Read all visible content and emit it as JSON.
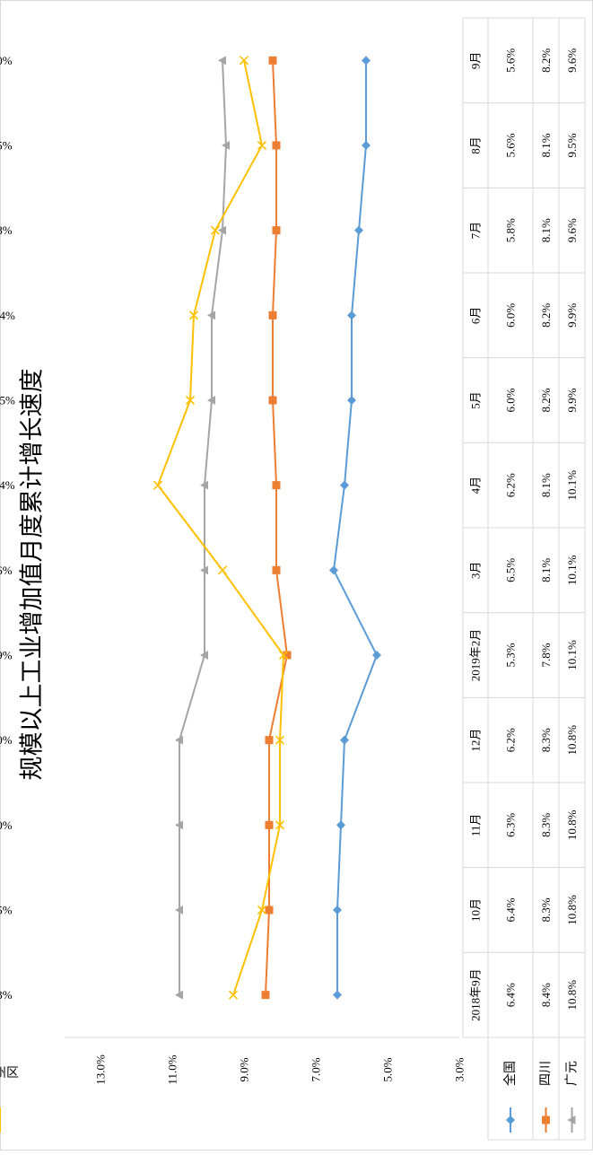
{
  "chart_data": {
    "type": "line",
    "title": "规模以上工业增加值月度累计增长速度",
    "categories": [
      "2018年9月",
      "10月",
      "11月",
      "12月",
      "2019年2月",
      "3月",
      "4月",
      "5月",
      "6月",
      "7月",
      "8月",
      "9月"
    ],
    "y_ticks": [
      "3.0%",
      "5.0%",
      "7.0%",
      "9.0%",
      "11.0%",
      "13.0%"
    ],
    "ylim": [
      3.0,
      13.0
    ],
    "unit": "%",
    "grid": false,
    "legend_placement": "bottom-table",
    "orientation": "rotated-90",
    "series": [
      {
        "name": "全国",
        "color": "#5b9bd5",
        "marker": "diamond",
        "values": [
          6.4,
          6.4,
          6.3,
          6.2,
          5.3,
          6.5,
          6.2,
          6.0,
          6.0,
          5.8,
          5.6,
          5.6
        ],
        "labels": [
          "6.4%",
          "6.4%",
          "6.3%",
          "6.2%",
          "5.3%",
          "6.5%",
          "6.2%",
          "6.0%",
          "6.0%",
          "5.8%",
          "5.6%",
          "5.6%"
        ]
      },
      {
        "name": "四川",
        "color": "#ed7d31",
        "marker": "square",
        "values": [
          8.4,
          8.3,
          8.3,
          8.3,
          7.8,
          8.1,
          8.1,
          8.2,
          8.2,
          8.1,
          8.1,
          8.2
        ],
        "labels": [
          "8.4%",
          "8.3%",
          "8.3%",
          "8.3%",
          "7.8%",
          "8.1%",
          "8.1%",
          "8.2%",
          "8.2%",
          "8.1%",
          "8.1%",
          "8.2%"
        ]
      },
      {
        "name": "广元",
        "color": "#a5a5a5",
        "marker": "triangle",
        "values": [
          10.8,
          10.8,
          10.8,
          10.8,
          10.1,
          10.1,
          10.1,
          9.9,
          9.9,
          9.6,
          9.5,
          9.6
        ],
        "labels": [
          "10.8%",
          "10.8%",
          "10.8%",
          "10.8%",
          "10.1%",
          "10.1%",
          "10.1%",
          "9.9%",
          "9.9%",
          "9.6%",
          "9.5%",
          "9.6%"
        ]
      },
      {
        "name": "利州区",
        "color": "#ffc000",
        "marker": "x",
        "values": [
          9.3,
          8.5,
          8.0,
          8.0,
          7.9,
          9.6,
          11.4,
          10.5,
          10.4,
          9.8,
          8.5,
          9.0
        ],
        "labels": [
          "9.3%",
          "8.5%",
          "8.0%",
          "8.0%",
          "7.9%",
          "9.6%",
          "11.4%",
          "10.5%",
          "10.4%",
          "9.8%",
          "8.5%",
          "9.0%"
        ]
      }
    ]
  }
}
